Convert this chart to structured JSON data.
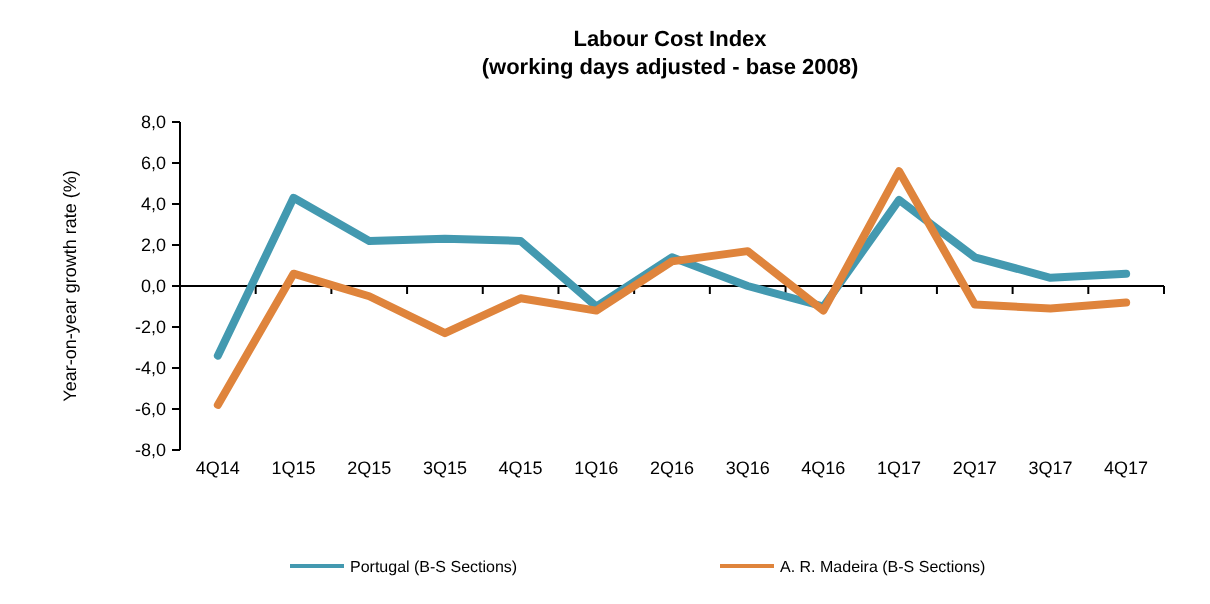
{
  "chart_data": {
    "type": "line",
    "title": "Labour Cost Index",
    "subtitle": "(working days adjusted  - base 2008)",
    "ylabel": "Year-on-year growth rate (%)",
    "categories": [
      "4Q14",
      "1Q15",
      "2Q15",
      "3Q15",
      "4Q15",
      "1Q16",
      "2Q16",
      "3Q16",
      "4Q16",
      "1Q17",
      "2Q17",
      "3Q17",
      "4Q17"
    ],
    "series": [
      {
        "name": "Portugal (B-S Sections)",
        "color": "#4399b0",
        "values": [
          -3.4,
          4.3,
          2.2,
          2.3,
          2.2,
          -1.0,
          1.4,
          0.0,
          -1.0,
          4.2,
          1.4,
          0.4,
          0.6
        ]
      },
      {
        "name": "A. R. Madeira (B-S Sections)",
        "color": "#df843c",
        "values": [
          -5.8,
          0.6,
          -0.5,
          -2.3,
          -0.6,
          -1.2,
          1.2,
          1.7,
          -1.2,
          5.6,
          -0.9,
          -1.1,
          -0.8
        ]
      }
    ],
    "ylim": [
      -8,
      8
    ],
    "yticks": [
      {
        "value": -8,
        "label": "-8,0"
      },
      {
        "value": -6,
        "label": "-6,0"
      },
      {
        "value": -4,
        "label": "-4,0"
      },
      {
        "value": -2,
        "label": "-2,0"
      },
      {
        "value": 0,
        "label": "0,0"
      },
      {
        "value": 2,
        "label": "2,0"
      },
      {
        "value": 4,
        "label": "4,0"
      },
      {
        "value": 6,
        "label": "6,0"
      },
      {
        "value": 8,
        "label": "8,0"
      }
    ],
    "legend": "bottom",
    "marker": "none",
    "line_style": "solid"
  }
}
